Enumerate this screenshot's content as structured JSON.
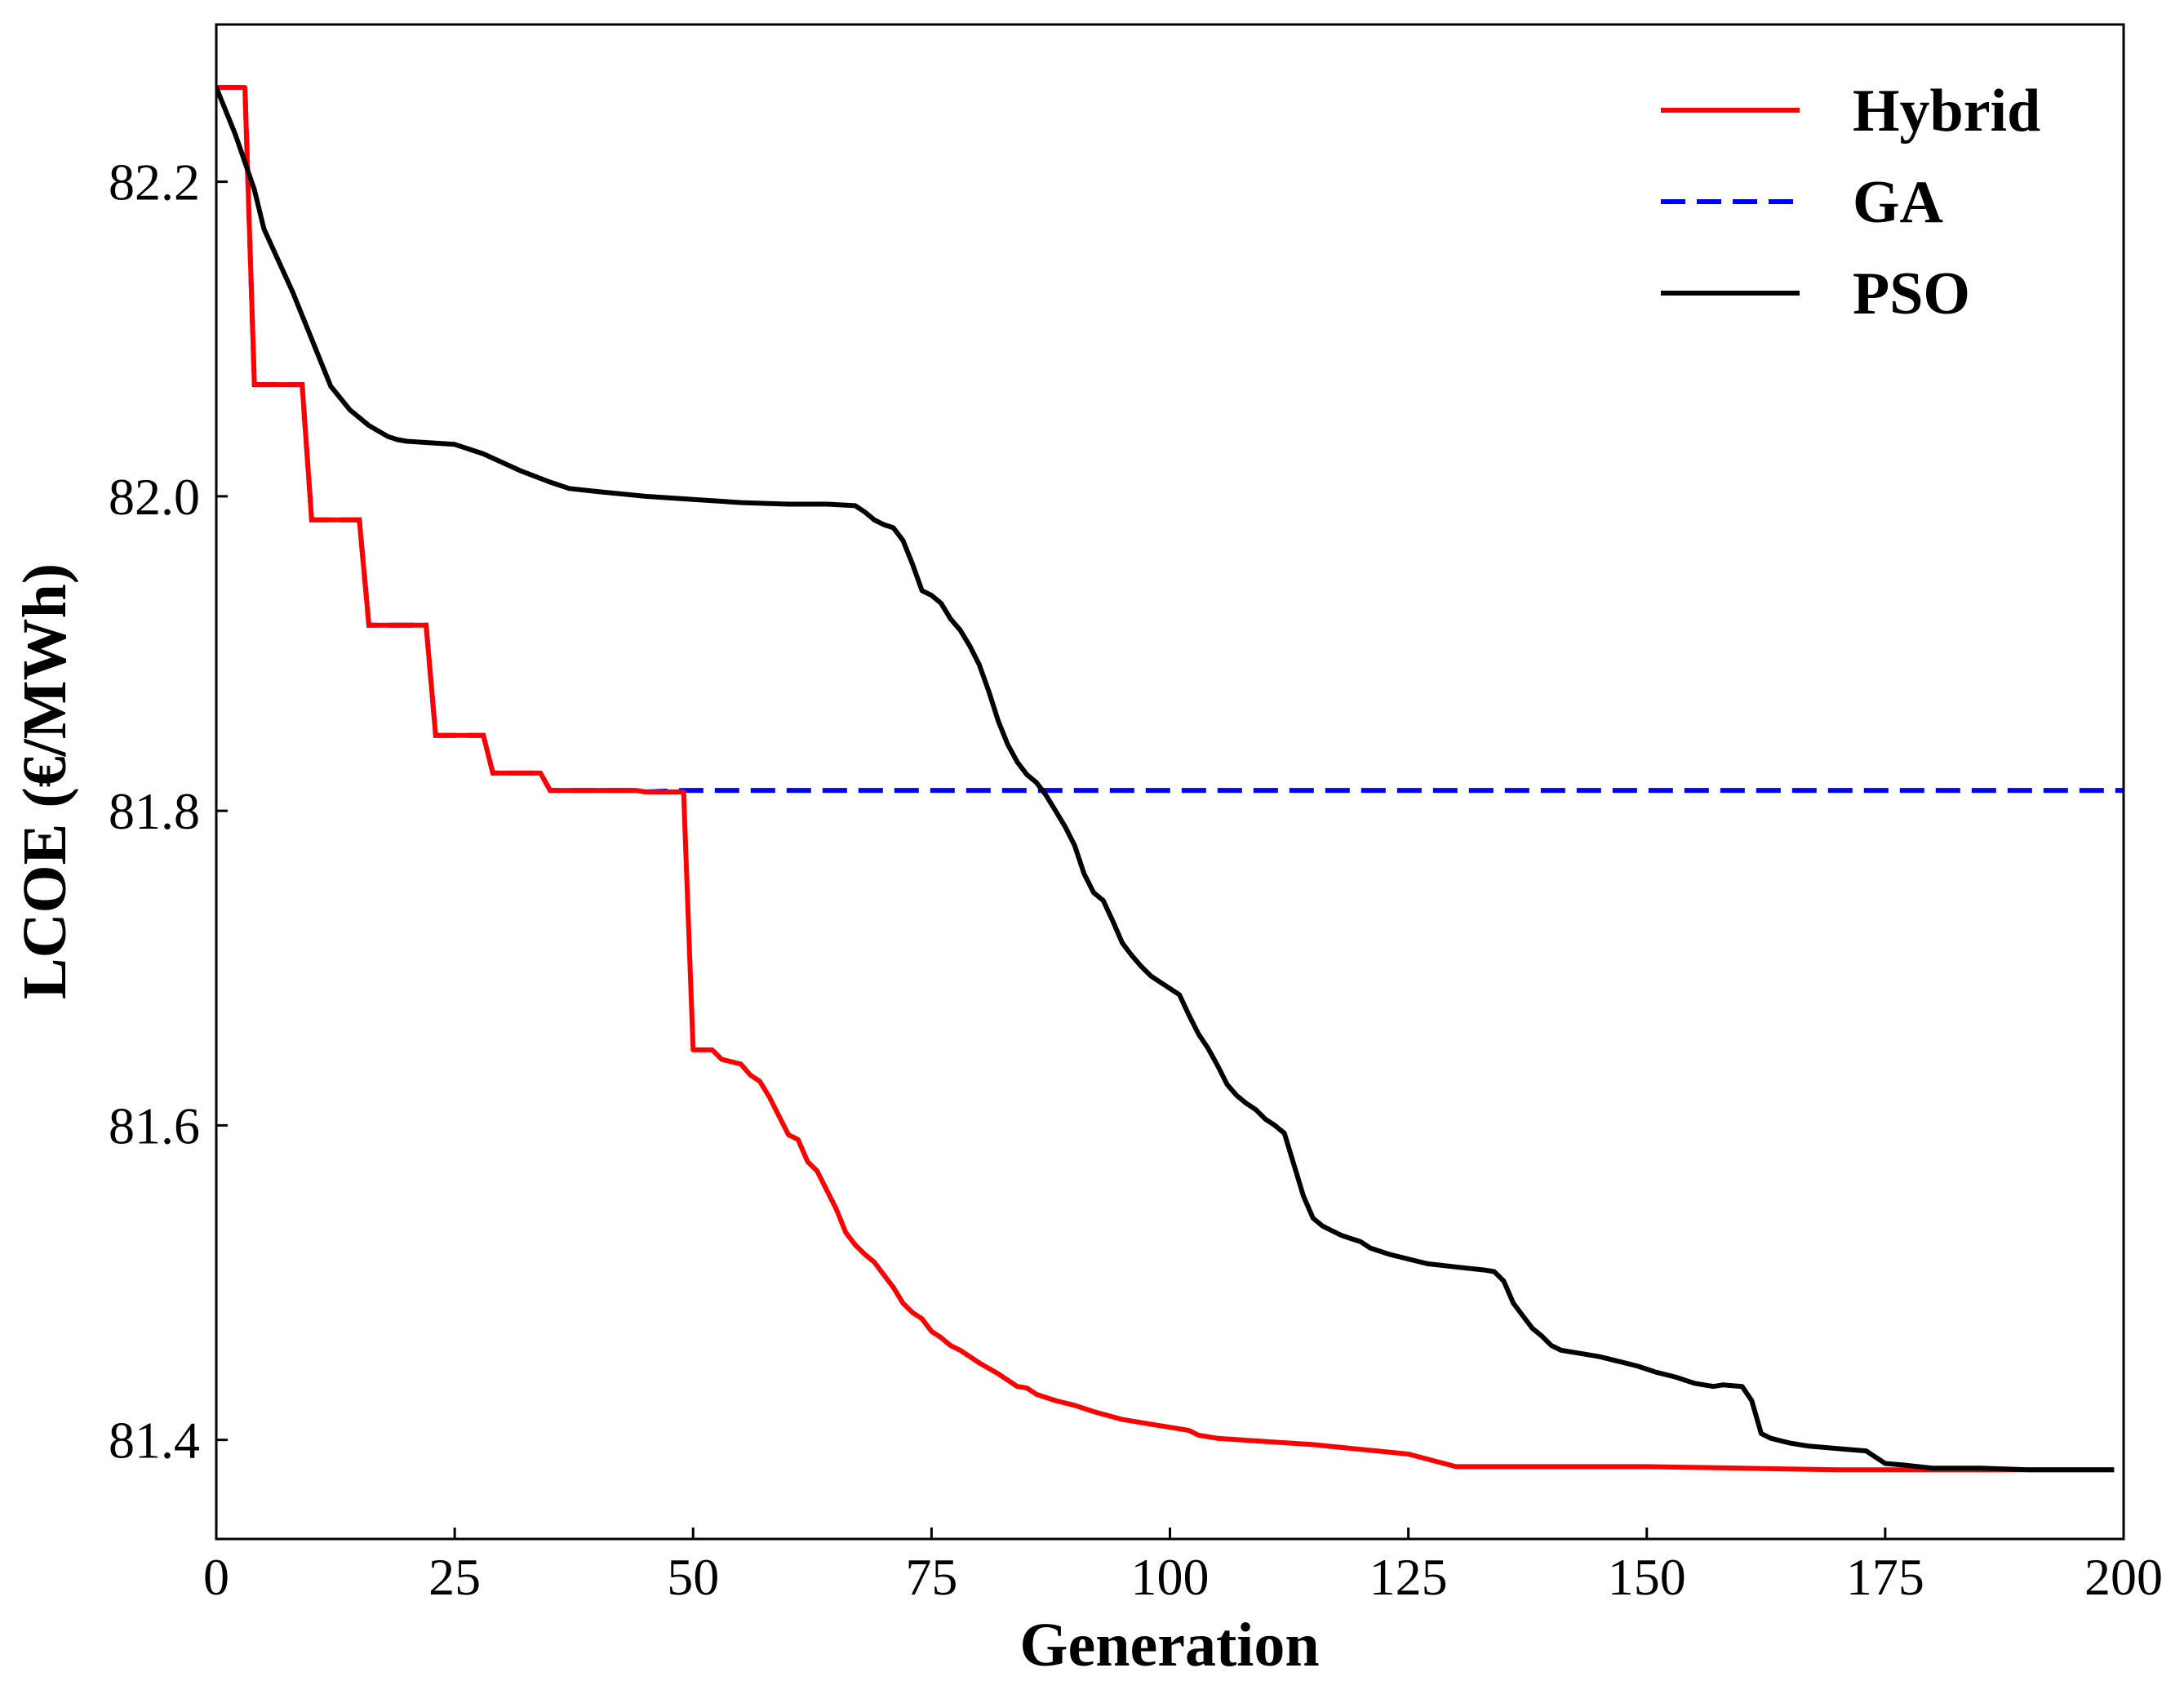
{
  "chart_data": {
    "type": "line",
    "title": "",
    "xlabel": "Generation",
    "ylabel": "LCOE (€/MWh)",
    "xlim": [
      0,
      200
    ],
    "ylim": [
      81.337,
      82.3
    ],
    "xticks": [
      0,
      25,
      50,
      75,
      100,
      125,
      150,
      175,
      200
    ],
    "xtick_labels": [
      "0",
      "25",
      "50",
      "75",
      "100",
      "125",
      "150",
      "175",
      "200"
    ],
    "yticks": [
      81.4,
      81.6,
      81.8,
      82.0,
      82.2
    ],
    "ytick_labels": [
      "81.4",
      "81.6",
      "81.8",
      "82.0",
      "82.2"
    ],
    "grid": false,
    "legend_position": "top-right",
    "series": [
      {
        "name": "Hybrid",
        "color": "#ff0000",
        "style": "solid",
        "x": [
          0,
          3,
          4,
          9,
          10,
          15,
          16,
          22,
          23,
          28,
          29,
          34,
          35,
          44,
          45,
          49,
          50,
          52,
          53,
          55,
          56,
          57,
          58,
          59,
          60,
          61,
          62,
          63,
          64,
          65,
          66,
          67,
          68,
          69,
          70,
          71,
          72,
          73,
          74,
          75,
          76,
          77,
          78,
          80,
          82,
          84,
          85,
          86,
          88,
          90,
          92,
          95,
          98,
          100,
          102,
          103,
          105,
          110,
          115,
          120,
          125,
          130,
          140,
          150,
          160,
          170,
          180,
          190,
          199
        ],
        "y": [
          82.26,
          82.26,
          82.071,
          82.071,
          81.985,
          81.985,
          81.918,
          81.918,
          81.848,
          81.848,
          81.824,
          81.824,
          81.813,
          81.813,
          81.812,
          81.812,
          81.648,
          81.648,
          81.642,
          81.639,
          81.632,
          81.628,
          81.618,
          81.606,
          81.594,
          81.591,
          81.577,
          81.571,
          81.559,
          81.547,
          81.532,
          81.524,
          81.518,
          81.513,
          81.505,
          81.497,
          81.487,
          81.481,
          81.477,
          81.469,
          81.465,
          81.46,
          81.457,
          81.449,
          81.442,
          81.434,
          81.433,
          81.429,
          81.425,
          81.422,
          81.418,
          81.413,
          81.41,
          81.408,
          81.406,
          81.403,
          81.401,
          81.399,
          81.397,
          81.394,
          81.391,
          81.383,
          81.383,
          81.383,
          81.382,
          81.381,
          81.381,
          81.381,
          81.381
        ]
      },
      {
        "name": "GA",
        "color": "#0000ff",
        "style": "dashed",
        "x": [
          0,
          3,
          4,
          9,
          10,
          15,
          16,
          22,
          23,
          28,
          29,
          34,
          35,
          44,
          45,
          49,
          200
        ],
        "y": [
          82.26,
          82.26,
          82.071,
          82.071,
          81.985,
          81.985,
          81.918,
          81.918,
          81.848,
          81.848,
          81.824,
          81.824,
          81.813,
          81.813,
          81.812,
          81.813,
          81.813
        ]
      },
      {
        "name": "PSO",
        "color": "#000000",
        "style": "solid",
        "x": [
          0,
          2,
          4,
          5,
          8,
          10,
          12,
          14,
          16,
          18,
          19,
          20,
          25,
          28,
          32,
          35,
          37,
          40,
          45,
          50,
          55,
          60,
          64,
          67,
          68,
          69,
          70,
          71,
          72,
          73,
          74,
          75,
          76,
          77,
          78,
          79,
          80,
          81,
          82,
          83,
          84,
          85,
          86,
          87,
          88,
          89,
          90,
          91,
          92,
          93,
          94,
          95,
          96,
          97,
          98,
          99,
          100,
          101,
          102,
          103,
          104,
          105,
          106,
          107,
          108,
          109,
          110,
          111,
          112,
          113,
          114,
          115,
          116,
          117,
          118,
          119,
          120,
          121,
          122,
          123,
          125,
          127,
          130,
          133,
          134,
          135,
          136,
          137,
          138,
          139,
          140,
          141,
          143,
          145,
          147,
          149,
          151,
          153,
          155,
          157,
          158,
          160,
          161,
          162,
          163,
          165,
          167,
          169,
          171,
          173,
          175,
          177,
          180,
          185,
          190,
          195,
          199
        ],
        "y": [
          82.26,
          82.23,
          82.195,
          82.17,
          82.13,
          82.1,
          82.07,
          82.055,
          82.045,
          82.038,
          82.036,
          82.035,
          82.033,
          82.027,
          82.016,
          82.009,
          82.005,
          82.003,
          82.0,
          81.998,
          81.996,
          81.995,
          81.995,
          81.994,
          81.99,
          81.985,
          81.982,
          81.98,
          81.972,
          81.957,
          81.94,
          81.937,
          81.932,
          81.922,
          81.915,
          81.905,
          81.893,
          81.876,
          81.857,
          81.842,
          81.831,
          81.823,
          81.818,
          81.81,
          81.8,
          81.79,
          81.778,
          81.76,
          81.748,
          81.743,
          81.73,
          81.716,
          81.708,
          81.701,
          81.695,
          81.691,
          81.687,
          81.683,
          81.67,
          81.658,
          81.649,
          81.638,
          81.626,
          81.619,
          81.614,
          81.61,
          81.604,
          81.6,
          81.595,
          81.575,
          81.555,
          81.541,
          81.536,
          81.533,
          81.53,
          81.528,
          81.526,
          81.522,
          81.52,
          81.518,
          81.515,
          81.512,
          81.51,
          81.508,
          81.507,
          81.501,
          81.487,
          81.479,
          81.471,
          81.466,
          81.46,
          81.457,
          81.455,
          81.453,
          81.45,
          81.447,
          81.443,
          81.44,
          81.436,
          81.434,
          81.435,
          81.434,
          81.425,
          81.404,
          81.401,
          81.398,
          81.396,
          81.395,
          81.394,
          81.393,
          81.385,
          81.384,
          81.382,
          81.382,
          81.381,
          81.381,
          81.381
        ]
      }
    ]
  }
}
